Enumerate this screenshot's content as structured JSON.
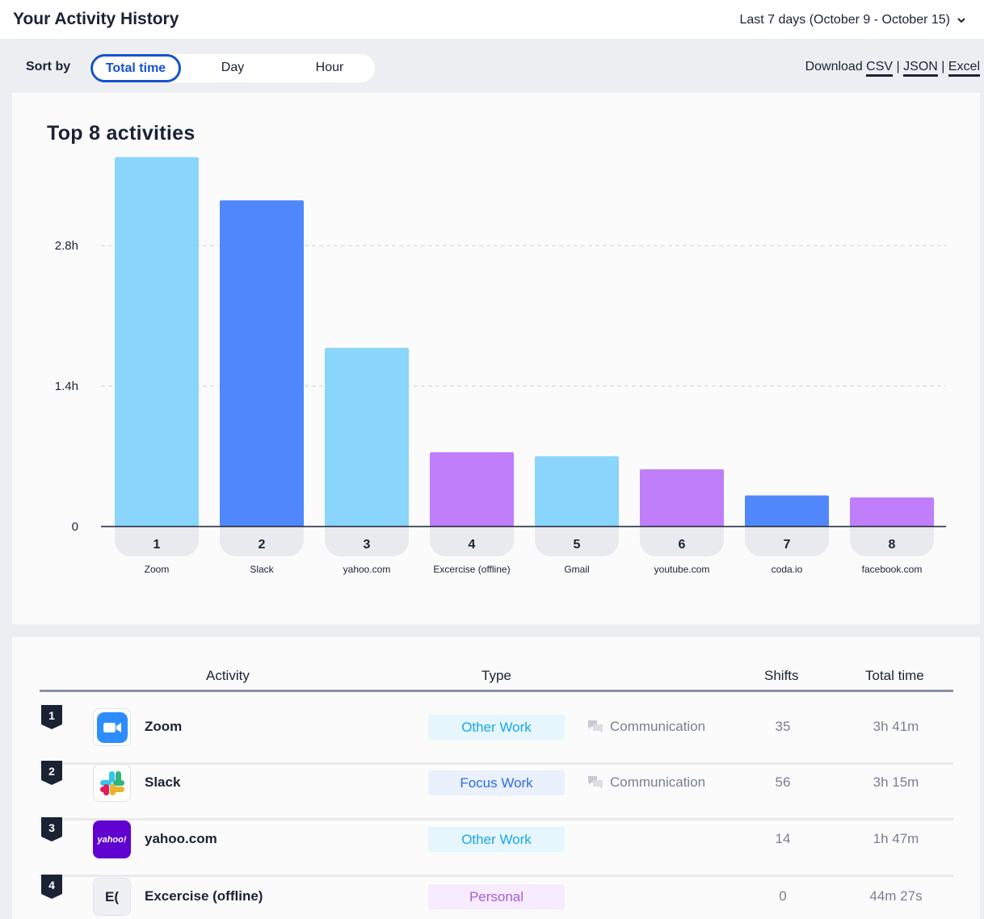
{
  "header": {
    "title": "Your Activity History",
    "date_range": "Last 7 days (October 9 - October 15)"
  },
  "toolbar": {
    "sort_label": "Sort by",
    "sort_options": [
      "Total time",
      "Day",
      "Hour"
    ],
    "sort_selected": "Total time",
    "download_label": "Download",
    "download_formats": [
      "CSV",
      "JSON",
      "Excel"
    ],
    "download_sep": "|"
  },
  "chart_data": {
    "type": "bar",
    "title": "Top 8 activities",
    "categories": [
      "1",
      "2",
      "3",
      "4",
      "5",
      "6",
      "7",
      "8"
    ],
    "names": [
      "Zoom",
      "Slack",
      "yahoo.com",
      "Excercise (offline)",
      "Gmail",
      "youtube.com",
      "coda.io",
      "facebook.com"
    ],
    "values": [
      3.68,
      3.25,
      1.78,
      0.74,
      0.7,
      0.57,
      0.31,
      0.29
    ],
    "bar_colors": [
      "#89d5fb",
      "#5088fb",
      "#89d5fb",
      "#c17efb",
      "#89d5fb",
      "#c17efb",
      "#5088fb",
      "#c17efb"
    ],
    "y_ticks": [
      0,
      1.4,
      2.8
    ],
    "y_tick_labels": [
      "0",
      "1.4h",
      "2.8h"
    ],
    "ylim": [
      0,
      4.2
    ],
    "grid": true
  },
  "table": {
    "headers": {
      "activity": "Activity",
      "type": "Type",
      "shifts": "Shifts",
      "total": "Total time"
    },
    "rows": [
      {
        "rank": "1",
        "name": "Zoom",
        "icon": "zoom-icon",
        "type": "Other Work",
        "type_color": "#1aa6e8",
        "type_bg": "#e6f6fd",
        "subtype": "Communication",
        "shifts": "35",
        "total": "3h 41m"
      },
      {
        "rank": "2",
        "name": "Slack",
        "icon": "slack-icon",
        "type": "Focus Work",
        "type_color": "#2d6bec",
        "type_bg": "#eaf1fd",
        "subtype": "Communication",
        "shifts": "56",
        "total": "3h 15m"
      },
      {
        "rank": "3",
        "name": "yahoo.com",
        "icon": "yahoo-icon",
        "icon_text": "yahoo!",
        "type": "Other Work",
        "type_color": "#1aa6e8",
        "type_bg": "#e6f6fd",
        "subtype": "",
        "shifts": "14",
        "total": "1h 47m"
      },
      {
        "rank": "4",
        "name": "Excercise (offline)",
        "icon": "exercise-icon",
        "icon_text": "E(",
        "type": "Personal",
        "type_color": "#a55ed9",
        "type_bg": "#f6ecfd",
        "subtype": "",
        "shifts": "0",
        "total": "44m 27s"
      }
    ]
  }
}
